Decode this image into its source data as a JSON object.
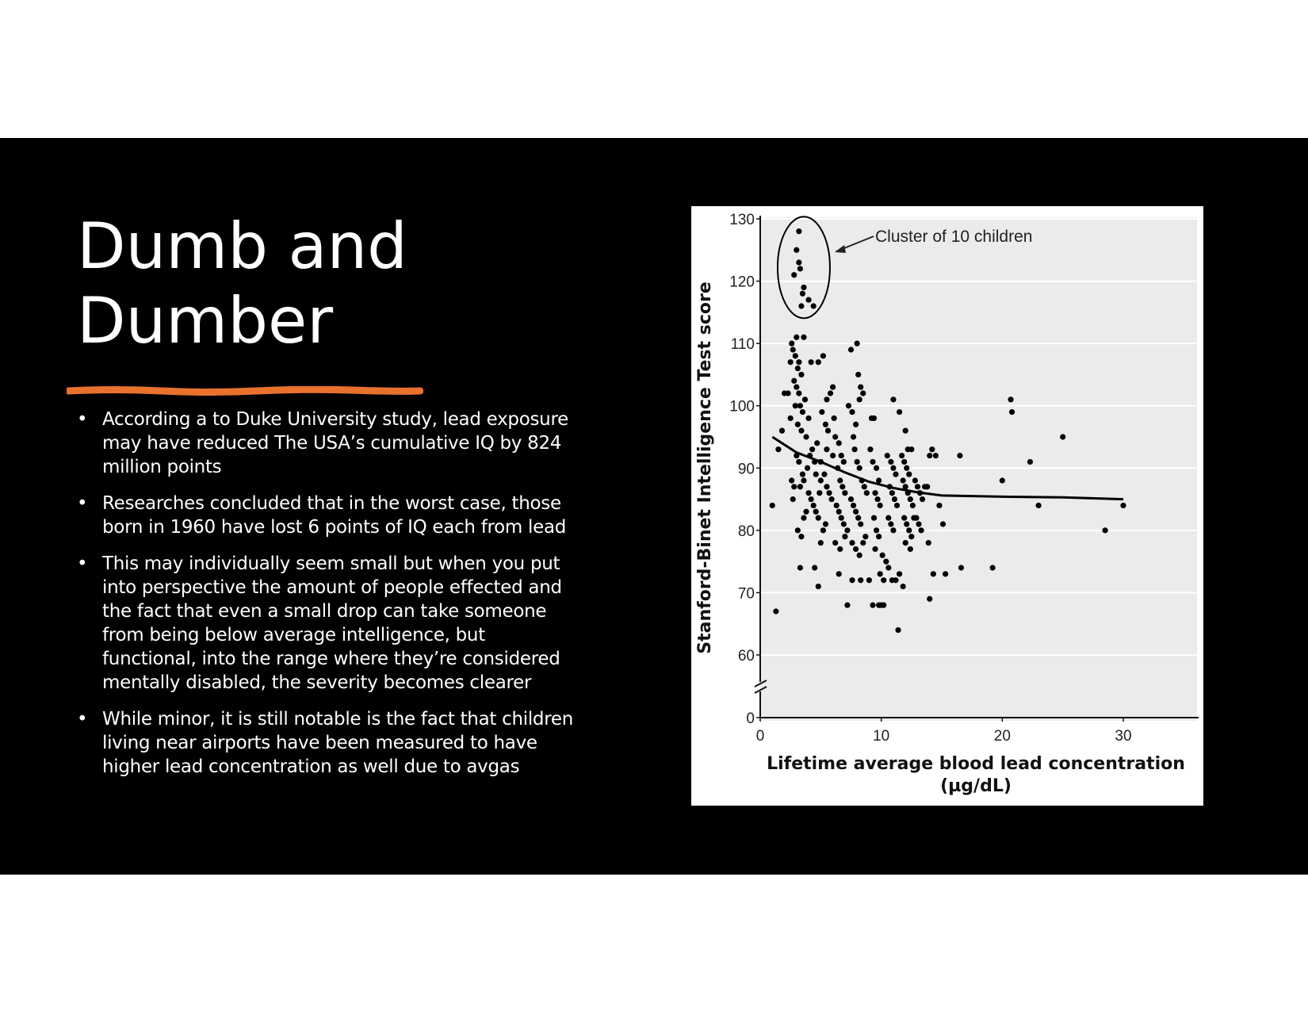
{
  "slide": {
    "title": "Dumb and Dumber",
    "accent_color": "#E9712E",
    "bullet_symbol": "•",
    "bullets": [
      "According a to Duke University study, lead exposure may have reduced The USA’s cumulative IQ by 824 million points",
      "Researches concluded that in the worst case, those born in 1960 have lost 6 points of IQ each from lead",
      "This may individually seem small but when you put into perspective the amount of people effected and the fact that even a small drop can take someone from being below average intelligence, but functional, into the range where they’re considered mentally disabled, the severity becomes clearer",
      "While minor,  it is still notable is the fact that children living near airports have been measured to have higher lead concentration as well due to avgas"
    ]
  },
  "chart_data": {
    "type": "scatter",
    "xlabel": "Lifetime average blood lead concentration",
    "xlabel_unit": "(µg/dL)",
    "ylabel": "Stanford-Binet Intelligence Test score",
    "xlim": [
      0,
      30
    ],
    "ylim": [
      60,
      130
    ],
    "y_axis_break": true,
    "x_ticks": [
      "0",
      "10",
      "20",
      "30"
    ],
    "y_ticks": [
      "0",
      "60",
      "70",
      "80",
      "90",
      "100",
      "110",
      "120",
      "130"
    ],
    "grid": "horizontal",
    "annotation": "Cluster of 10 children",
    "cluster_points": [
      [
        3.2,
        128
      ],
      [
        3.0,
        125
      ],
      [
        3.2,
        123
      ],
      [
        3.3,
        122
      ],
      [
        2.8,
        121
      ],
      [
        3.6,
        119
      ],
      [
        3.5,
        118
      ],
      [
        3.4,
        116
      ],
      [
        4.0,
        117
      ],
      [
        4.4,
        116
      ]
    ],
    "points": [
      [
        1.0,
        84
      ],
      [
        1.3,
        67
      ],
      [
        1.5,
        93
      ],
      [
        1.8,
        96
      ],
      [
        2.0,
        102
      ],
      [
        2.3,
        102
      ],
      [
        2.5,
        98
      ],
      [
        2.6,
        88
      ],
      [
        2.7,
        85
      ],
      [
        2.8,
        87
      ],
      [
        2.5,
        107
      ],
      [
        2.6,
        110
      ],
      [
        2.7,
        109
      ],
      [
        2.9,
        108
      ],
      [
        3.0,
        111
      ],
      [
        3.1,
        106
      ],
      [
        3.2,
        107
      ],
      [
        3.4,
        105
      ],
      [
        3.6,
        111
      ],
      [
        2.8,
        104
      ],
      [
        3.0,
        103
      ],
      [
        3.2,
        102
      ],
      [
        3.3,
        100
      ],
      [
        3.5,
        99
      ],
      [
        3.7,
        101
      ],
      [
        2.9,
        100
      ],
      [
        3.1,
        97
      ],
      [
        3.4,
        96
      ],
      [
        3.8,
        95
      ],
      [
        4.0,
        98
      ],
      [
        3.0,
        92
      ],
      [
        3.2,
        91
      ],
      [
        3.5,
        89
      ],
      [
        3.6,
        88
      ],
      [
        3.3,
        87
      ],
      [
        3.9,
        90
      ],
      [
        4.1,
        92
      ],
      [
        4.3,
        93
      ],
      [
        4.5,
        91
      ],
      [
        4.7,
        94
      ],
      [
        3.1,
        80
      ],
      [
        3.4,
        79
      ],
      [
        3.3,
        74
      ],
      [
        3.6,
        82
      ],
      [
        3.8,
        83
      ],
      [
        4.0,
        86
      ],
      [
        4.2,
        85
      ],
      [
        4.4,
        84
      ],
      [
        4.6,
        83
      ],
      [
        4.8,
        82
      ],
      [
        4.5,
        74
      ],
      [
        4.8,
        71
      ],
      [
        5.0,
        78
      ],
      [
        5.2,
        80
      ],
      [
        5.4,
        81
      ],
      [
        5.0,
        88
      ],
      [
        5.3,
        89
      ],
      [
        5.5,
        87
      ],
      [
        5.7,
        86
      ],
      [
        5.9,
        85
      ],
      [
        4.2,
        107
      ],
      [
        4.8,
        107
      ],
      [
        5.2,
        108
      ],
      [
        5.5,
        101
      ],
      [
        5.8,
        102
      ],
      [
        6.0,
        103
      ],
      [
        5.1,
        99
      ],
      [
        5.4,
        97
      ],
      [
        5.6,
        96
      ],
      [
        6.1,
        98
      ],
      [
        6.2,
        95
      ],
      [
        6.5,
        94
      ],
      [
        6.7,
        92
      ],
      [
        6.9,
        91
      ],
      [
        6.4,
        90
      ],
      [
        6.6,
        88
      ],
      [
        6.8,
        87
      ],
      [
        7.0,
        86
      ],
      [
        6.3,
        84
      ],
      [
        6.5,
        83
      ],
      [
        6.7,
        82
      ],
      [
        6.9,
        81
      ],
      [
        6.2,
        78
      ],
      [
        6.6,
        77
      ],
      [
        7.0,
        79
      ],
      [
        7.2,
        80
      ],
      [
        6.5,
        73
      ],
      [
        7.2,
        68
      ],
      [
        7.6,
        72
      ],
      [
        7.5,
        109
      ],
      [
        8.0,
        110
      ],
      [
        8.1,
        105
      ],
      [
        8.3,
        103
      ],
      [
        8.5,
        102
      ],
      [
        8.2,
        101
      ],
      [
        7.3,
        100
      ],
      [
        7.6,
        99
      ],
      [
        7.9,
        97
      ],
      [
        7.7,
        95
      ],
      [
        7.8,
        93
      ],
      [
        8.0,
        91
      ],
      [
        8.2,
        90
      ],
      [
        8.4,
        88
      ],
      [
        8.6,
        87
      ],
      [
        8.8,
        86
      ],
      [
        7.5,
        85
      ],
      [
        7.7,
        84
      ],
      [
        7.9,
        83
      ],
      [
        8.1,
        82
      ],
      [
        8.3,
        81
      ],
      [
        7.6,
        78
      ],
      [
        7.9,
        77
      ],
      [
        8.2,
        76
      ],
      [
        8.5,
        78
      ],
      [
        8.7,
        79
      ],
      [
        8.3,
        72
      ],
      [
        9.0,
        72
      ],
      [
        9.3,
        68
      ],
      [
        9.2,
        98
      ],
      [
        9.4,
        98
      ],
      [
        9.1,
        93
      ],
      [
        9.3,
        91
      ],
      [
        9.6,
        90
      ],
      [
        9.8,
        88
      ],
      [
        9.5,
        86
      ],
      [
        9.7,
        85
      ],
      [
        9.9,
        84
      ],
      [
        9.4,
        82
      ],
      [
        9.6,
        80
      ],
      [
        9.8,
        79
      ],
      [
        9.5,
        77
      ],
      [
        9.8,
        68
      ],
      [
        10.0,
        68
      ],
      [
        10.2,
        68
      ],
      [
        9.9,
        73
      ],
      [
        10.2,
        72
      ],
      [
        10.1,
        76
      ],
      [
        10.4,
        75
      ],
      [
        10.6,
        74
      ],
      [
        10.5,
        92
      ],
      [
        10.8,
        91
      ],
      [
        11.0,
        90
      ],
      [
        11.2,
        89
      ],
      [
        10.7,
        87
      ],
      [
        10.9,
        86
      ],
      [
        11.1,
        85
      ],
      [
        11.3,
        84
      ],
      [
        10.6,
        82
      ],
      [
        10.8,
        81
      ],
      [
        11.0,
        80
      ],
      [
        10.9,
        72
      ],
      [
        11.2,
        72
      ],
      [
        11.4,
        64
      ],
      [
        11.5,
        73
      ],
      [
        11.8,
        71
      ],
      [
        11.0,
        101
      ],
      [
        11.5,
        99
      ],
      [
        12.0,
        96
      ],
      [
        12.2,
        93
      ],
      [
        12.5,
        93
      ],
      [
        11.7,
        92
      ],
      [
        11.9,
        91
      ],
      [
        12.1,
        90
      ],
      [
        12.3,
        89
      ],
      [
        11.8,
        88
      ],
      [
        12.0,
        87
      ],
      [
        12.2,
        86
      ],
      [
        12.4,
        85
      ],
      [
        12.6,
        84
      ],
      [
        11.9,
        82
      ],
      [
        12.1,
        81
      ],
      [
        12.3,
        80
      ],
      [
        12.5,
        79
      ],
      [
        12.0,
        78
      ],
      [
        12.4,
        77
      ],
      [
        12.7,
        82
      ],
      [
        12.9,
        82
      ],
      [
        13.1,
        81
      ],
      [
        13.3,
        80
      ],
      [
        12.8,
        88
      ],
      [
        13.0,
        87
      ],
      [
        13.2,
        86
      ],
      [
        13.4,
        85
      ],
      [
        13.6,
        87
      ],
      [
        13.8,
        87
      ],
      [
        14.0,
        92
      ],
      [
        14.2,
        93
      ],
      [
        14.5,
        92
      ],
      [
        13.9,
        78
      ],
      [
        14.3,
        73
      ],
      [
        14.8,
        84
      ],
      [
        15.1,
        81
      ],
      [
        15.3,
        73
      ],
      [
        14.0,
        69
      ],
      [
        16.5,
        92
      ],
      [
        16.6,
        74
      ],
      [
        19.2,
        74
      ],
      [
        20.0,
        88
      ],
      [
        20.7,
        101
      ],
      [
        20.8,
        99
      ],
      [
        22.3,
        91
      ],
      [
        23.0,
        84
      ],
      [
        25.0,
        95
      ],
      [
        28.5,
        80
      ],
      [
        30.0,
        84
      ],
      [
        5.0,
        91
      ],
      [
        5.5,
        93
      ],
      [
        6.0,
        92
      ],
      [
        4.6,
        89
      ],
      [
        4.9,
        86
      ]
    ],
    "trend_line": [
      [
        1,
        95
      ],
      [
        3,
        92.5
      ],
      [
        5,
        91
      ],
      [
        7,
        89.3
      ],
      [
        9,
        87.8
      ],
      [
        11,
        86.8
      ],
      [
        13,
        86.1
      ],
      [
        15,
        85.6
      ],
      [
        20,
        85.4
      ],
      [
        25,
        85.3
      ],
      [
        30,
        85
      ]
    ]
  }
}
